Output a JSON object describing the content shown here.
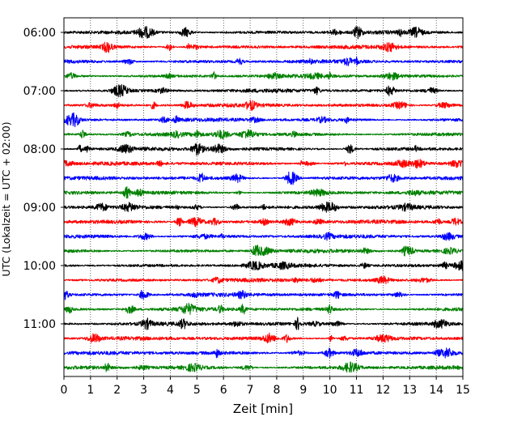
{
  "chart_data": {
    "type": "line",
    "title": "",
    "xlabel": "Zeit  [min]",
    "ylabel": "UTC (Lokalzeit = UTC + 02:00)",
    "xlim": [
      0,
      15
    ],
    "x_ticks": [
      "0",
      "1",
      "2",
      "3",
      "4",
      "5",
      "6",
      "7",
      "8",
      "9",
      "10",
      "11",
      "12",
      "13",
      "14",
      "15"
    ],
    "y_ticks": [
      "06:00",
      "07:00",
      "08:00",
      "09:00",
      "10:00",
      "11:00"
    ],
    "grid": "vertical dotted",
    "trace_interval_minutes": 15,
    "trace_colors": [
      "#000000",
      "#ff0000",
      "#0000ff",
      "#008000"
    ],
    "series": [
      {
        "start": "06:00",
        "color": "#000000"
      },
      {
        "start": "06:15",
        "color": "#ff0000"
      },
      {
        "start": "06:30",
        "color": "#0000ff"
      },
      {
        "start": "06:45",
        "color": "#008000"
      },
      {
        "start": "07:00",
        "color": "#000000"
      },
      {
        "start": "07:15",
        "color": "#ff0000"
      },
      {
        "start": "07:30",
        "color": "#0000ff"
      },
      {
        "start": "07:45",
        "color": "#008000"
      },
      {
        "start": "08:00",
        "color": "#000000"
      },
      {
        "start": "08:15",
        "color": "#ff0000"
      },
      {
        "start": "08:30",
        "color": "#0000ff"
      },
      {
        "start": "08:45",
        "color": "#008000"
      },
      {
        "start": "09:00",
        "color": "#000000"
      },
      {
        "start": "09:15",
        "color": "#ff0000"
      },
      {
        "start": "09:30",
        "color": "#0000ff"
      },
      {
        "start": "09:45",
        "color": "#008000"
      },
      {
        "start": "10:00",
        "color": "#000000"
      },
      {
        "start": "10:15",
        "color": "#ff0000"
      },
      {
        "start": "10:30",
        "color": "#0000ff"
      },
      {
        "start": "10:45",
        "color": "#008000"
      },
      {
        "start": "11:00",
        "color": "#000000"
      },
      {
        "start": "11:15",
        "color": "#ff0000"
      },
      {
        "start": "11:30",
        "color": "#0000ff"
      },
      {
        "start": "11:45",
        "color": "#008000"
      }
    ]
  }
}
